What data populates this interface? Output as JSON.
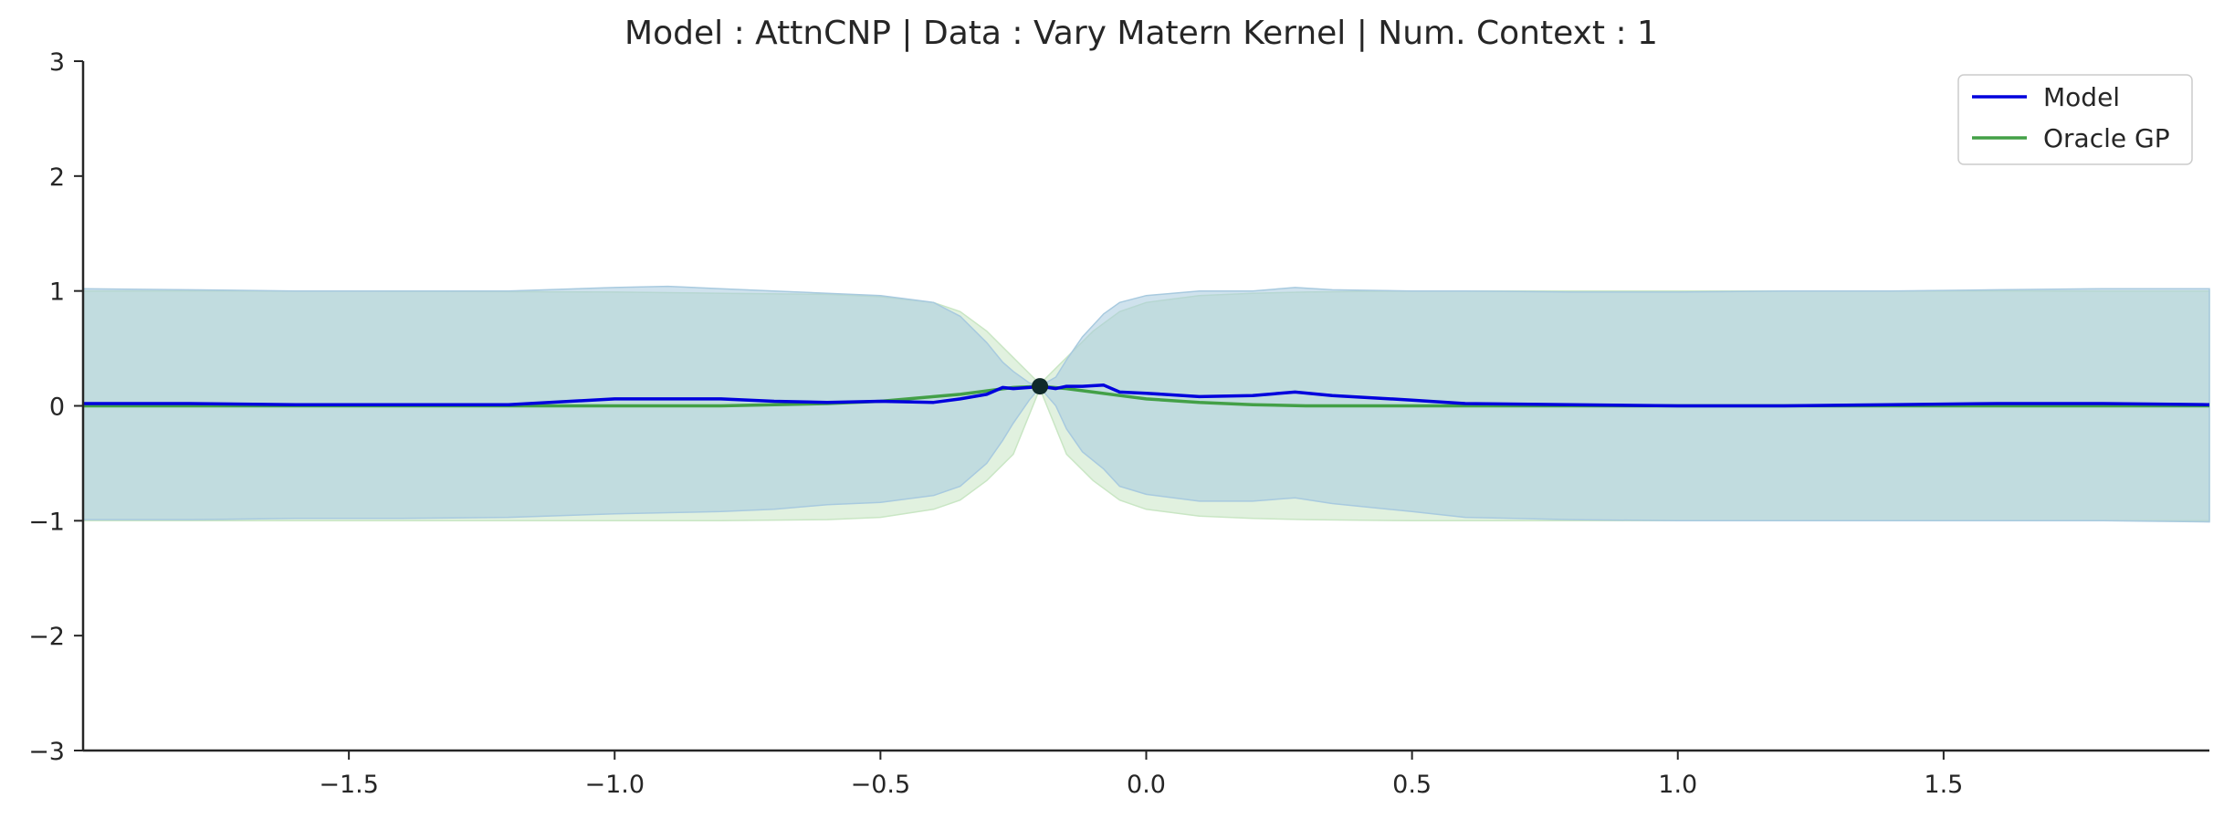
{
  "chart_data": {
    "type": "line",
    "title": "Model : AttnCNP | Data : Vary Matern Kernel | Num. Context : 1",
    "xlabel": "",
    "ylabel": "",
    "xlim": [
      -2.0,
      2.0
    ],
    "ylim": [
      -3,
      3
    ],
    "x_ticks": [
      -1.5,
      -1.0,
      -0.5,
      0.0,
      0.5,
      1.0,
      1.5
    ],
    "x_tick_labels": [
      "−1.5",
      "−1.0",
      "−0.5",
      "0.0",
      "0.5",
      "1.0",
      "1.5"
    ],
    "y_ticks": [
      -3,
      -2,
      -1,
      0,
      1,
      2,
      3
    ],
    "y_tick_labels": [
      "−3",
      "−2",
      "−1",
      "0",
      "1",
      "2",
      "3"
    ],
    "grid": false,
    "legend_position": "top-right",
    "context_points": [
      {
        "x": -0.2,
        "y": 0.17
      }
    ],
    "colors": {
      "model": "#0000dd",
      "model_band": "#a8cadf",
      "oracle": "#43a047",
      "oracle_band": "#c9e6c4",
      "context": "#102a2a"
    },
    "series": [
      {
        "name": "Model",
        "x": [
          -2.0,
          -1.8,
          -1.6,
          -1.4,
          -1.2,
          -1.0,
          -0.9,
          -0.8,
          -0.7,
          -0.6,
          -0.5,
          -0.4,
          -0.35,
          -0.3,
          -0.27,
          -0.25,
          -0.22,
          -0.2,
          -0.17,
          -0.15,
          -0.12,
          -0.08,
          -0.05,
          0.0,
          0.1,
          0.2,
          0.28,
          0.35,
          0.5,
          0.6,
          0.8,
          1.0,
          1.2,
          1.4,
          1.6,
          1.8,
          2.0
        ],
        "y": [
          0.02,
          0.02,
          0.01,
          0.01,
          0.01,
          0.06,
          0.06,
          0.06,
          0.04,
          0.03,
          0.04,
          0.03,
          0.06,
          0.1,
          0.16,
          0.15,
          0.16,
          0.17,
          0.15,
          0.17,
          0.17,
          0.18,
          0.12,
          0.11,
          0.08,
          0.09,
          0.12,
          0.09,
          0.05,
          0.02,
          0.01,
          0.0,
          0.0,
          0.01,
          0.02,
          0.02,
          0.01
        ],
        "upper": [
          1.02,
          1.01,
          1.0,
          1.0,
          1.0,
          1.03,
          1.04,
          1.02,
          1.0,
          0.98,
          0.96,
          0.9,
          0.78,
          0.55,
          0.38,
          0.3,
          0.2,
          0.17,
          0.25,
          0.4,
          0.6,
          0.8,
          0.9,
          0.96,
          1.0,
          1.0,
          1.03,
          1.01,
          1.0,
          1.0,
          0.99,
          0.99,
          1.0,
          1.0,
          1.01,
          1.02,
          1.02
        ],
        "lower": [
          -0.99,
          -0.99,
          -0.98,
          -0.98,
          -0.97,
          -0.94,
          -0.93,
          -0.92,
          -0.9,
          -0.86,
          -0.84,
          -0.78,
          -0.7,
          -0.5,
          -0.3,
          -0.15,
          0.05,
          0.16,
          0.0,
          -0.2,
          -0.4,
          -0.55,
          -0.7,
          -0.77,
          -0.83,
          -0.83,
          -0.8,
          -0.85,
          -0.92,
          -0.97,
          -0.99,
          -1.0,
          -1.0,
          -1.0,
          -1.0,
          -1.0,
          -1.01
        ]
      },
      {
        "name": "Oracle GP",
        "x": [
          -2.0,
          -1.5,
          -1.0,
          -0.8,
          -0.6,
          -0.5,
          -0.4,
          -0.35,
          -0.3,
          -0.25,
          -0.2,
          -0.15,
          -0.1,
          -0.05,
          0.0,
          0.1,
          0.2,
          0.3,
          0.5,
          1.0,
          1.5,
          2.0
        ],
        "y": [
          0.0,
          0.0,
          0.0,
          0.0,
          0.02,
          0.04,
          0.08,
          0.1,
          0.13,
          0.16,
          0.17,
          0.15,
          0.12,
          0.09,
          0.06,
          0.03,
          0.01,
          0.0,
          0.0,
          0.0,
          0.0,
          0.0
        ],
        "upper": [
          1.0,
          1.0,
          0.99,
          0.98,
          0.97,
          0.95,
          0.9,
          0.82,
          0.65,
          0.42,
          0.19,
          0.42,
          0.65,
          0.82,
          0.9,
          0.96,
          0.98,
          0.99,
          1.0,
          1.0,
          1.0,
          1.0
        ],
        "lower": [
          -1.0,
          -1.0,
          -1.0,
          -1.0,
          -0.99,
          -0.97,
          -0.9,
          -0.82,
          -0.65,
          -0.42,
          0.15,
          -0.42,
          -0.65,
          -0.82,
          -0.9,
          -0.96,
          -0.98,
          -0.99,
          -1.0,
          -1.0,
          -1.0,
          -1.0
        ]
      }
    ]
  }
}
